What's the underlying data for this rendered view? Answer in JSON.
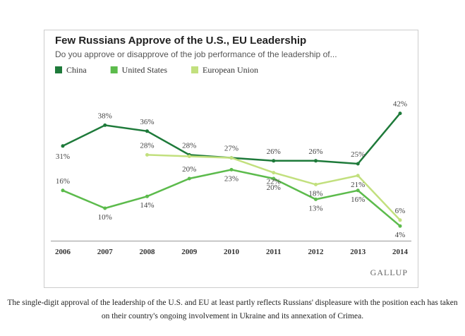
{
  "chart_data": {
    "type": "line",
    "title": "Few Russians Approve of the U.S., EU Leadership",
    "subtitle": "Do you approve or disapprove of the job performance of the leadership of...",
    "categories": [
      "2006",
      "2007",
      "2008",
      "2009",
      "2010",
      "2011",
      "2012",
      "2013",
      "2014"
    ],
    "series": [
      {
        "name": "China",
        "color": "#1e7a3a",
        "values": [
          31,
          38,
          36,
          28,
          27,
          26,
          26,
          25,
          42
        ],
        "value_labels": [
          "31%",
          "38%",
          "36%",
          "28%",
          "27%",
          "26%",
          "26%",
          "25%",
          "42%"
        ]
      },
      {
        "name": "United States",
        "color": "#5cbb4c",
        "values": [
          16,
          10,
          14,
          20,
          23,
          20,
          13,
          16,
          4
        ],
        "value_labels": [
          "16%",
          "10%",
          "14%",
          "20%",
          "23%",
          "20%",
          "13%",
          "16%",
          "4%"
        ]
      },
      {
        "name": "European Union",
        "color": "#c2e07e",
        "values": [
          null,
          null,
          28,
          27.5,
          27,
          22,
          18,
          21,
          6
        ],
        "value_labels": [
          null,
          null,
          "28%",
          null,
          null,
          "22%",
          "18%",
          "21%",
          "6%"
        ]
      }
    ],
    "ylim": [
      0,
      45
    ],
    "source": "GALLUP",
    "caption": "The single-digit approval of the leadership of the U.S. and EU at least partly reflects Russians' displeasure with the position each has taken on their country's ongoing involvement in Ukraine and its annexation of Crimea."
  }
}
